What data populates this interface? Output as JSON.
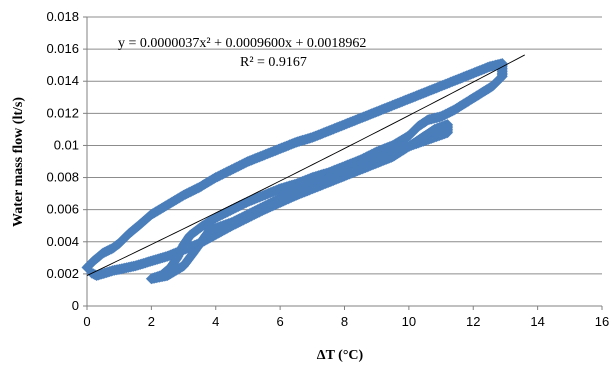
{
  "chart_data": {
    "type": "scatter",
    "xlabel": "ΔT (°C)",
    "ylabel": "Water mass flow (lt/s)",
    "xlim": [
      0,
      16
    ],
    "ylim": [
      0,
      0.018
    ],
    "x_ticks": [
      "0",
      "2",
      "4",
      "6",
      "8",
      "10",
      "12",
      "14",
      "16"
    ],
    "y_ticks": [
      "0",
      "0.002",
      "0.004",
      "0.006",
      "0.008",
      "0.01",
      "0.012",
      "0.014",
      "0.016",
      "0.018"
    ],
    "grid": "horizontal",
    "marker_color": "#4a7ebb",
    "trendline": {
      "type": "polynomial-2",
      "equation_label": "y = 0.0000037x² + 0.0009600x + 0.0018962",
      "r2_label": "R² = 0.9167",
      "coefficients": [
        3.7e-06,
        0.00096,
        0.0018962
      ],
      "x_range": [
        0,
        13.6
      ]
    },
    "series": [
      {
        "values": [
          [
            0.0,
            0.0024
          ],
          [
            0.2,
            0.0028
          ],
          [
            0.5,
            0.0033
          ],
          [
            0.8,
            0.0036
          ],
          [
            1.0,
            0.0039
          ],
          [
            1.3,
            0.0045
          ],
          [
            1.6,
            0.005
          ],
          [
            2.0,
            0.0057
          ],
          [
            2.5,
            0.0063
          ],
          [
            3.0,
            0.0069
          ],
          [
            3.5,
            0.0074
          ],
          [
            4.0,
            0.008
          ],
          [
            4.5,
            0.0085
          ],
          [
            5.0,
            0.009
          ],
          [
            5.5,
            0.0094
          ],
          [
            6.0,
            0.0098
          ],
          [
            6.5,
            0.0102
          ],
          [
            7.0,
            0.0105
          ],
          [
            7.5,
            0.0109
          ],
          [
            8.0,
            0.0113
          ],
          [
            8.5,
            0.0117
          ],
          [
            9.0,
            0.0121
          ],
          [
            9.5,
            0.0125
          ],
          [
            10.0,
            0.0129
          ],
          [
            10.5,
            0.0133
          ],
          [
            11.0,
            0.0137
          ],
          [
            11.5,
            0.0141
          ],
          [
            12.0,
            0.0145
          ],
          [
            12.5,
            0.0149
          ],
          [
            12.9,
            0.0151
          ],
          [
            12.9,
            0.0143
          ],
          [
            12.6,
            0.0137
          ],
          [
            12.2,
            0.0132
          ],
          [
            11.8,
            0.0127
          ],
          [
            11.4,
            0.0122
          ],
          [
            11.0,
            0.0118
          ],
          [
            10.6,
            0.0116
          ],
          [
            10.3,
            0.0112
          ],
          [
            10.0,
            0.0106
          ],
          [
            9.5,
            0.01
          ],
          [
            9.0,
            0.0096
          ],
          [
            8.5,
            0.0091
          ],
          [
            8.0,
            0.0087
          ],
          [
            7.5,
            0.0083
          ],
          [
            7.0,
            0.008
          ],
          [
            6.5,
            0.0076
          ],
          [
            6.0,
            0.0073
          ],
          [
            5.5,
            0.0069
          ],
          [
            5.0,
            0.0065
          ],
          [
            4.5,
            0.006
          ],
          [
            4.0,
            0.0055
          ],
          [
            3.6,
            0.005
          ],
          [
            3.2,
            0.0044
          ],
          [
            3.0,
            0.0038
          ],
          [
            2.8,
            0.003
          ],
          [
            2.6,
            0.0024
          ],
          [
            2.3,
            0.0019
          ],
          [
            2.0,
            0.0017
          ],
          [
            2.5,
            0.0019
          ],
          [
            3.0,
            0.0025
          ],
          [
            3.3,
            0.0033
          ],
          [
            3.8,
            0.0047
          ],
          [
            4.5,
            0.0052
          ],
          [
            5.5,
            0.0062
          ],
          [
            6.5,
            0.0072
          ],
          [
            7.5,
            0.008
          ],
          [
            8.5,
            0.0088
          ],
          [
            9.5,
            0.0096
          ],
          [
            10.5,
            0.0103
          ],
          [
            11.2,
            0.0108
          ],
          [
            11.2,
            0.0113
          ],
          [
            10.8,
            0.011
          ],
          [
            10.2,
            0.0102
          ],
          [
            9.5,
            0.0093
          ],
          [
            8.5,
            0.0085
          ],
          [
            7.5,
            0.0077
          ],
          [
            6.5,
            0.0069
          ],
          [
            5.5,
            0.006
          ],
          [
            4.5,
            0.005
          ],
          [
            3.5,
            0.0039
          ],
          [
            2.5,
            0.0031
          ],
          [
            1.5,
            0.0025
          ],
          [
            0.8,
            0.0022
          ],
          [
            0.3,
            0.0019
          ],
          [
            0.1,
            0.0021
          ]
        ]
      }
    ]
  }
}
